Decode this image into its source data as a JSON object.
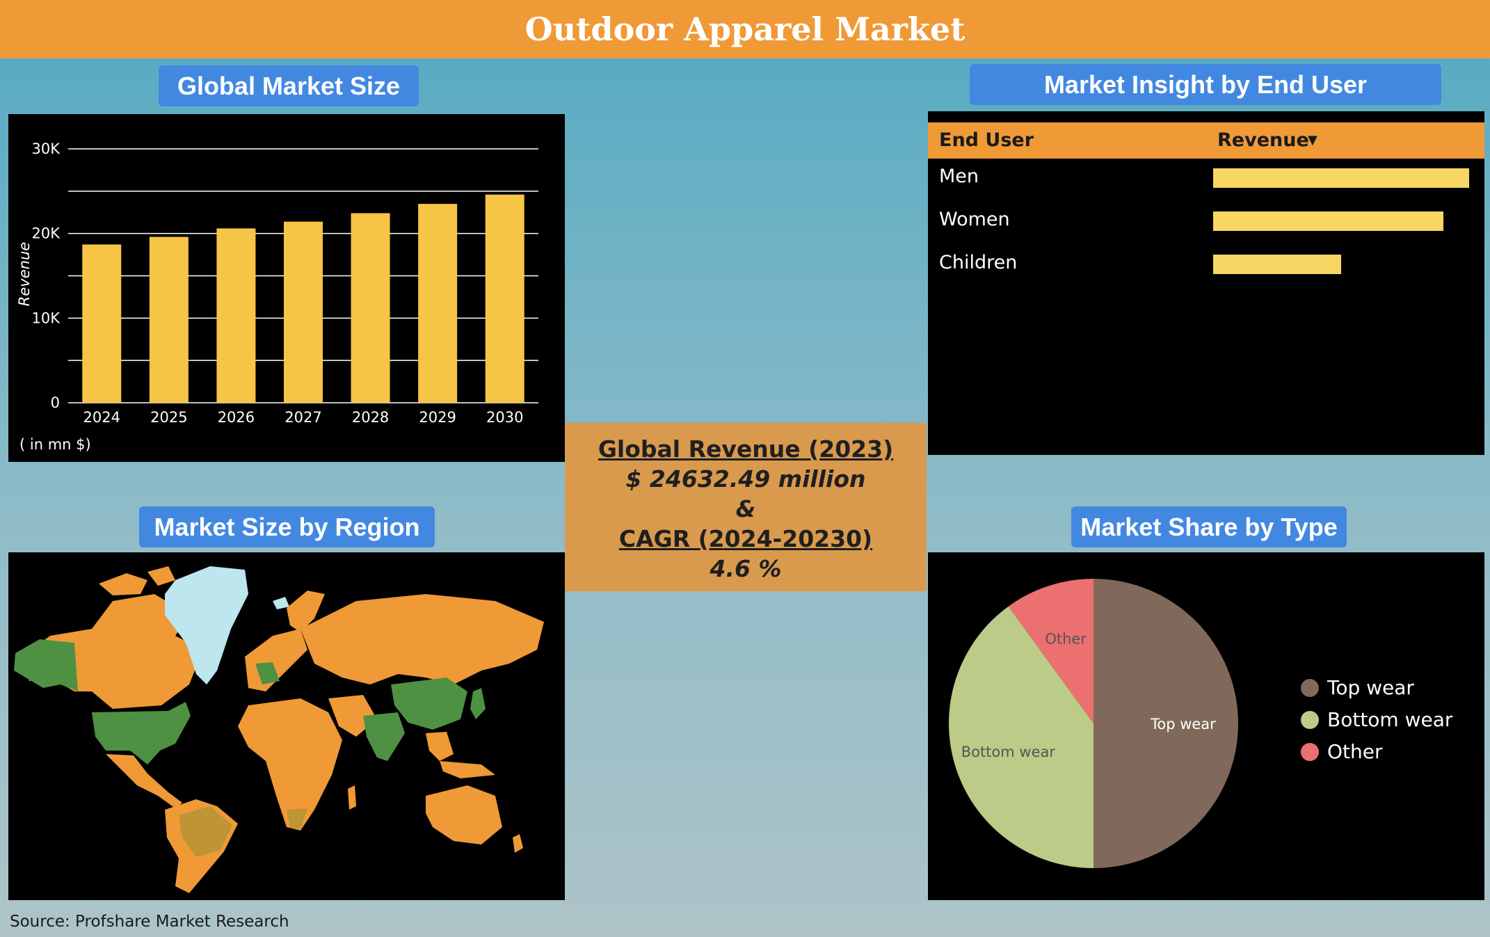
{
  "title": "Outdoor Apparel Market",
  "panels": {
    "market_size_title": "Global Market Size",
    "end_user_title": "Market Insight by End User",
    "region_title": "Market Size by Region",
    "type_title": "Market Share by Type"
  },
  "center": {
    "line1": "Global Revenue (2023)",
    "line2": "$ 24632.49 million",
    "line3": "&",
    "line4": "CAGR (2024-20230)",
    "line5": "4.6 %"
  },
  "end_user_table": {
    "col1": "End User",
    "col2": "Revenue",
    "sort_icon": "sort-desc-icon"
  },
  "source": "Source: Profshare Market Research",
  "map": {
    "legend": [],
    "colors": {
      "highlight": "#4e9143",
      "base": "#ef9a37",
      "ice": "#bde6ee",
      "mid": "#bf9435"
    }
  },
  "chart_data": [
    {
      "type": "bar",
      "categories": [
        "2024",
        "2025",
        "2026",
        "2027",
        "2028",
        "2029",
        "2030"
      ],
      "values": [
        18700,
        19600,
        20600,
        21400,
        22400,
        23500,
        24600
      ],
      "ylabel": "Revenue",
      "unit_note": "( in mn $)",
      "ylim": [
        0,
        30000
      ],
      "yticks": [
        "0",
        "10K",
        "20K",
        "30K"
      ],
      "grid": true,
      "color": "#f7c545"
    },
    {
      "type": "bar",
      "orientation": "horizontal",
      "categories": [
        "Men",
        "Women",
        "Children"
      ],
      "values": [
        1.0,
        0.9,
        0.5
      ],
      "color": "#f7d663"
    },
    {
      "type": "pie",
      "labels": [
        "Top wear",
        "Bottom wear",
        "Other"
      ],
      "values": [
        50,
        40,
        10
      ],
      "colors": [
        "#80695a",
        "#bccb87",
        "#ec7070"
      ],
      "legend": "right"
    }
  ]
}
